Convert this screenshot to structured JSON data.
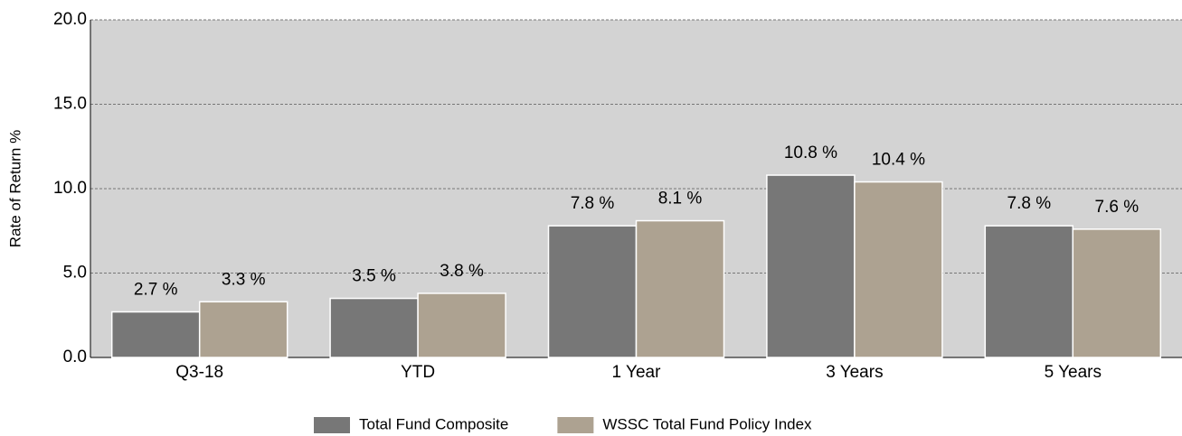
{
  "chart_data": {
    "type": "bar",
    "y_label": "Rate of Return %",
    "categories": [
      "Q3-18",
      "YTD",
      "1 Year",
      "3 Years",
      "5 Years"
    ],
    "series": [
      {
        "name": "Total Fund Composite",
        "color": "#777777",
        "values": [
          2.7,
          3.5,
          7.8,
          10.8,
          7.8
        ],
        "value_labels": [
          "2.7 %",
          "3.5 %",
          "7.8 %",
          "10.8 %",
          "7.8 %"
        ]
      },
      {
        "name": "WSSC Total Fund Policy Index",
        "color": "#ada291",
        "values": [
          3.3,
          3.8,
          8.1,
          10.4,
          7.6
        ],
        "value_labels": [
          "3.3 %",
          "3.8 %",
          "8.1 %",
          "10.4 %",
          "7.6 %"
        ]
      }
    ],
    "ylim": [
      0,
      20
    ],
    "yticks": [
      {
        "value": 0,
        "label": "0.0"
      },
      {
        "value": 5,
        "label": "5.0"
      },
      {
        "value": 10,
        "label": "10.0"
      },
      {
        "value": 15,
        "label": "15.0"
      },
      {
        "value": 20,
        "label": "20.0"
      }
    ],
    "grid": true,
    "legend": "bottom"
  }
}
